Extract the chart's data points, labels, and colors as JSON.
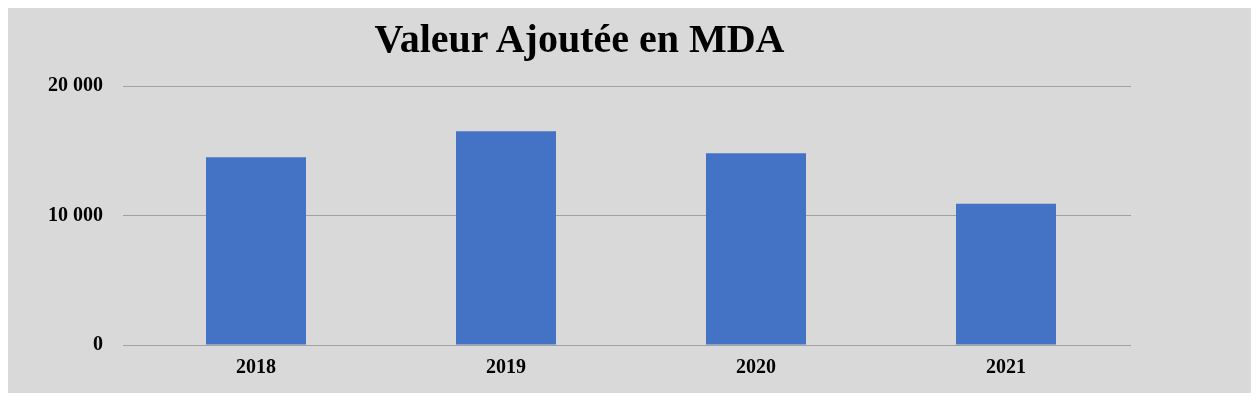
{
  "chart_data": {
    "type": "bar",
    "title": "Valeur Ajoutée en MDA",
    "categories": [
      "2018",
      "2019",
      "2020",
      "2021"
    ],
    "values": [
      14500,
      16500,
      14800,
      10900
    ],
    "color": "#4472c4",
    "ylim": [
      0,
      20000
    ],
    "yticks": [
      {
        "value": 0,
        "label": "0"
      },
      {
        "value": 10000,
        "label": "10 000"
      },
      {
        "value": 20000,
        "label": "20 000"
      }
    ],
    "grid": "y",
    "legend": false
  }
}
